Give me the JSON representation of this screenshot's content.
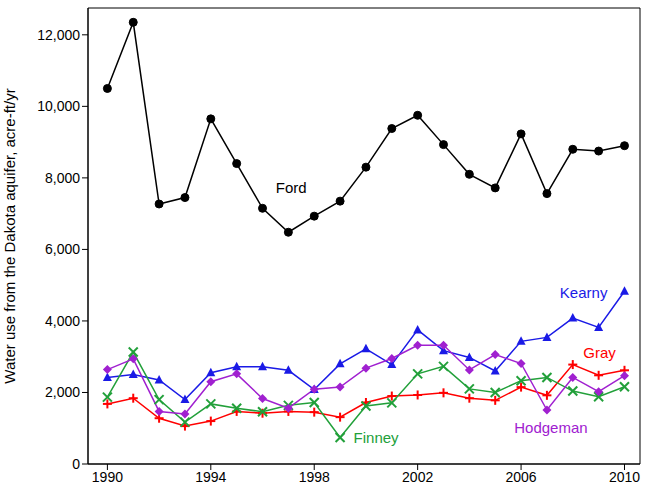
{
  "chart_data": {
    "type": "line",
    "y_label": "Water use from the Dakota aquifer, acre-ft/yr",
    "x": [
      1990,
      1991,
      1992,
      1993,
      1994,
      1995,
      1996,
      1997,
      1998,
      1999,
      2000,
      2001,
      2002,
      2003,
      2004,
      2005,
      2006,
      2007,
      2008,
      2009,
      2010
    ],
    "xlim": [
      1989.25,
      2010.6
    ],
    "xticks": [
      1990,
      1994,
      1998,
      2002,
      2006,
      2010
    ],
    "ylim": [
      0,
      12750
    ],
    "yticks": [
      0,
      {
        "value": 2000,
        "label": "2,000"
      },
      {
        "value": 4000,
        "label": "4,000"
      },
      {
        "value": 6000,
        "label": "6,000"
      },
      {
        "value": 8000,
        "label": "8,000"
      },
      {
        "value": 10000,
        "label": "10,000"
      },
      {
        "value": 12000,
        "label": "12,000"
      }
    ],
    "grid": false,
    "series": [
      {
        "name": "Ford",
        "color": "#000000",
        "marker": "circle",
        "values": [
          10500,
          12350,
          7270,
          7450,
          9650,
          8400,
          7150,
          6480,
          6930,
          7350,
          8300,
          9380,
          9750,
          8930,
          8100,
          7720,
          9230,
          7560,
          8800,
          8750,
          8900
        ]
      },
      {
        "name": "Kearny",
        "color": "#1a1ae6",
        "marker": "triangle",
        "values": [
          2420,
          2500,
          2350,
          1800,
          2550,
          2720,
          2720,
          2620,
          2080,
          2800,
          3220,
          2780,
          3750,
          3170,
          2980,
          2600,
          3430,
          3540,
          4080,
          3820,
          4830
        ]
      },
      {
        "name": "Gray",
        "color": "#ff0000",
        "marker": "plus",
        "values": [
          1680,
          1840,
          1280,
          1060,
          1200,
          1470,
          1420,
          1470,
          1450,
          1310,
          1720,
          1900,
          1930,
          1990,
          1840,
          1780,
          2150,
          1920,
          2780,
          2480,
          2620
        ]
      },
      {
        "name": "Finney",
        "color": "#22a03a",
        "marker": "x",
        "values": [
          1870,
          3130,
          1800,
          1170,
          1680,
          1560,
          1460,
          1640,
          1720,
          740,
          1620,
          1710,
          2520,
          2730,
          2100,
          2000,
          2330,
          2420,
          2040,
          1880,
          2160
        ]
      },
      {
        "name": "Hodgeman",
        "color": "#a020d0",
        "marker": "diamond",
        "values": [
          2640,
          2940,
          1470,
          1400,
          2300,
          2520,
          1830,
          1560,
          2090,
          2150,
          2680,
          2950,
          3320,
          3320,
          2630,
          3060,
          2810,
          1510,
          2420,
          2020,
          2470
        ]
      }
    ]
  }
}
